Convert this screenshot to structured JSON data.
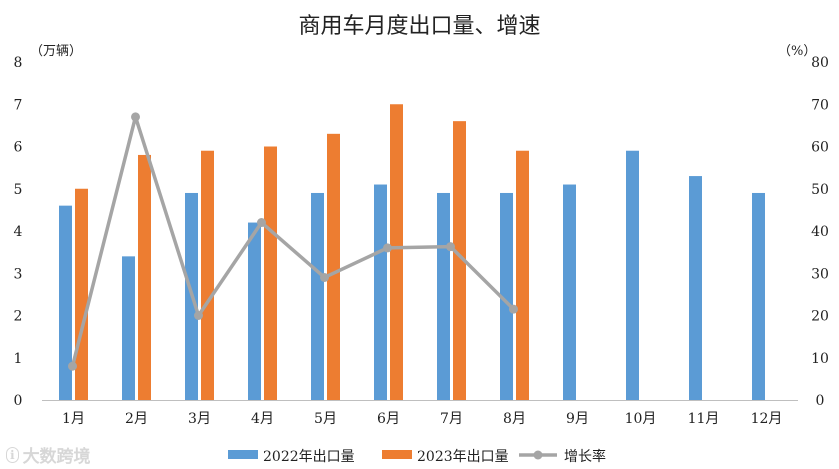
{
  "watermark": "大数跨境",
  "chart_data": {
    "type": "bar",
    "title": "商用车月度出口量、增速",
    "ylabel": "（万辆）",
    "y2label": "（%）",
    "ylim": [
      0,
      8
    ],
    "y2lim": [
      0,
      80
    ],
    "yticks": [
      "0",
      "1",
      "2",
      "3",
      "4",
      "5",
      "6",
      "7",
      "8"
    ],
    "y2ticks": [
      "0",
      "10",
      "20",
      "30",
      "40",
      "50",
      "60",
      "70",
      "80"
    ],
    "grid": false,
    "legend_position": "bottom",
    "categories": [
      "1月",
      "2月",
      "3月",
      "4月",
      "5月",
      "6月",
      "7月",
      "8月",
      "9月",
      "10月",
      "11月",
      "12月"
    ],
    "series": [
      {
        "name": "2022年出口量",
        "type": "bar",
        "axis": "left",
        "color": "#5b9bd5",
        "values": [
          4.6,
          3.4,
          4.9,
          4.2,
          4.9,
          5.1,
          4.9,
          4.9,
          5.1,
          5.9,
          5.3,
          4.9
        ]
      },
      {
        "name": "2023年出口量",
        "type": "bar",
        "axis": "left",
        "color": "#ed7d31",
        "values": [
          5.0,
          5.8,
          5.9,
          6.0,
          6.3,
          7.0,
          6.6,
          5.9,
          null,
          null,
          null,
          null
        ]
      },
      {
        "name": "增长率",
        "type": "line",
        "axis": "right",
        "color": "#a5a5a5",
        "values": [
          8,
          67,
          20,
          42,
          29,
          36,
          36.3,
          21.5,
          null,
          null,
          null,
          null
        ]
      }
    ]
  }
}
